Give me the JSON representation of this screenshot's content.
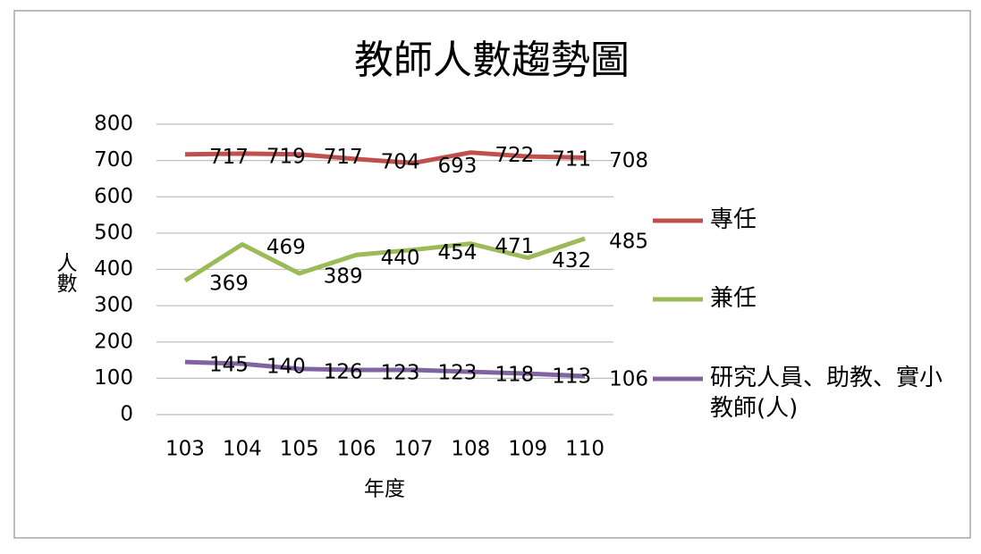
{
  "chart_data": {
    "type": "line",
    "title": "教師人數趨勢圖",
    "x_label": "年度",
    "y_label": "人數",
    "categories": [
      "103",
      "104",
      "105",
      "106",
      "107",
      "108",
      "109",
      "110"
    ],
    "series": [
      {
        "name": "專任",
        "color": "#c0504d",
        "values": [
          717,
          719,
          717,
          704,
          693,
          722,
          711,
          708
        ]
      },
      {
        "name": "兼任",
        "color": "#9bbb59",
        "values": [
          369,
          469,
          389,
          440,
          454,
          471,
          432,
          485
        ]
      },
      {
        "name": "研究人員、助教、實小教師(人)",
        "color": "#8064a2",
        "values": [
          145,
          140,
          126,
          123,
          123,
          118,
          113,
          106
        ]
      }
    ],
    "ylim": [
      0,
      800
    ],
    "yticks": [
      0,
      100,
      200,
      300,
      400,
      500,
      600,
      700,
      800
    ],
    "grid": true,
    "legend": "right"
  }
}
